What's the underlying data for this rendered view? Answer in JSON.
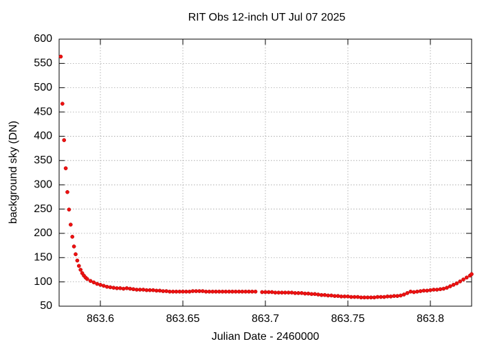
{
  "chart_data": {
    "type": "scatter",
    "title": "RIT Obs 12-inch UT Jul 07 2025",
    "x_label": "Julian Date - 2460000",
    "y_label": "background sky (DN)",
    "color": "#ee1111",
    "grid": true,
    "xlim": [
      863.575,
      863.825
    ],
    "ylim": [
      50,
      600
    ],
    "xticks": [
      863.6,
      863.65,
      863.7,
      863.75,
      863.8
    ],
    "yticks": [
      50,
      100,
      150,
      200,
      250,
      300,
      350,
      400,
      450,
      500,
      550,
      600
    ],
    "x": [
      863.576,
      863.577,
      863.578,
      863.579,
      863.58,
      863.581,
      863.582,
      863.583,
      863.584,
      863.585,
      863.586,
      863.587,
      863.588,
      863.589,
      863.59,
      863.591,
      863.592,
      863.594,
      863.596,
      863.598,
      863.6,
      863.602,
      863.604,
      863.606,
      863.608,
      863.61,
      863.612,
      863.614,
      863.616,
      863.618,
      863.62,
      863.622,
      863.624,
      863.626,
      863.628,
      863.63,
      863.632,
      863.634,
      863.636,
      863.638,
      863.64,
      863.642,
      863.644,
      863.646,
      863.648,
      863.65,
      863.652,
      863.654,
      863.656,
      863.658,
      863.66,
      863.662,
      863.664,
      863.666,
      863.668,
      863.67,
      863.672,
      863.674,
      863.676,
      863.678,
      863.68,
      863.682,
      863.684,
      863.686,
      863.688,
      863.69,
      863.692,
      863.694,
      863.698,
      863.7,
      863.702,
      863.704,
      863.706,
      863.708,
      863.71,
      863.712,
      863.714,
      863.716,
      863.718,
      863.72,
      863.722,
      863.724,
      863.726,
      863.728,
      863.73,
      863.732,
      863.734,
      863.736,
      863.738,
      863.74,
      863.742,
      863.744,
      863.746,
      863.748,
      863.75,
      863.752,
      863.754,
      863.756,
      863.758,
      863.76,
      863.762,
      863.764,
      863.766,
      863.768,
      863.77,
      863.772,
      863.774,
      863.776,
      863.778,
      863.78,
      863.782,
      863.784,
      863.786,
      863.788,
      863.79,
      863.792,
      863.794,
      863.796,
      863.798,
      863.8,
      863.802,
      863.804,
      863.806,
      863.808,
      863.81,
      863.812,
      863.814,
      863.816,
      863.818,
      863.82,
      863.822,
      863.824,
      863.825
    ],
    "values": [
      564,
      467,
      392,
      334,
      285,
      249,
      218,
      193,
      173,
      157,
      144,
      133,
      125,
      118,
      113,
      109,
      106,
      102,
      99,
      96,
      94,
      92,
      90,
      89,
      88,
      87,
      87,
      86,
      87,
      86,
      85,
      84,
      84,
      84,
      83,
      83,
      83,
      82,
      82,
      81,
      81,
      80,
      80,
      80,
      80,
      80,
      80,
      80,
      81,
      81,
      81,
      81,
      80,
      80,
      80,
      80,
      80,
      80,
      80,
      80,
      80,
      80,
      80,
      80,
      80,
      80,
      80,
      80,
      79,
      79,
      79,
      79,
      78,
      78,
      78,
      78,
      78,
      78,
      77,
      77,
      77,
      76,
      76,
      75,
      75,
      74,
      73,
      73,
      72,
      72,
      71,
      71,
      70,
      70,
      70,
      69,
      69,
      69,
      68,
      68,
      68,
      68,
      68,
      69,
      69,
      69,
      70,
      70,
      71,
      71,
      72,
      74,
      77,
      80,
      79,
      80,
      81,
      82,
      82,
      83,
      84,
      84,
      85,
      86,
      88,
      91,
      94,
      97,
      101,
      105,
      109,
      113,
      116
    ]
  }
}
